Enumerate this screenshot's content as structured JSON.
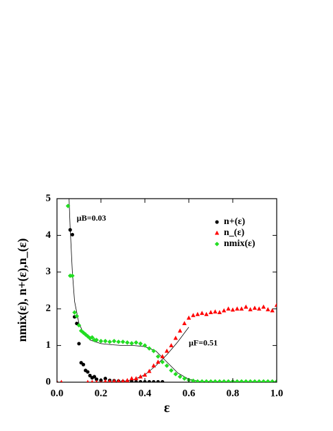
{
  "chart_data": {
    "type": "scatter",
    "xlabel": "ε",
    "ylabel": "nmix(ε), n+(ε),n_(ε)",
    "xlim": [
      0,
      1
    ],
    "ylim": [
      0,
      5
    ],
    "xticks": [
      {
        "value": 0,
        "label": "0.0"
      },
      0.2,
      0.4,
      0.6,
      0.8,
      {
        "value": 1,
        "label": "1.0"
      }
    ],
    "yticks": [
      0,
      1,
      2,
      3,
      4,
      5
    ],
    "legend": "upper right",
    "annotations": [
      {
        "text": "μB=0.03",
        "x": 0.09,
        "y": 4.45
      },
      {
        "text": "μF=0.51",
        "x": 0.6,
        "y": 1.05
      }
    ],
    "series": [
      {
        "name": "n+(ε)",
        "color": "#000000",
        "marker": "circle",
        "x": [
          0.06,
          0.07,
          0.08,
          0.09,
          0.1,
          0.11,
          0.12,
          0.13,
          0.14,
          0.15,
          0.16,
          0.17,
          0.18,
          0.2,
          0.22,
          0.24,
          0.26,
          0.28,
          0.3,
          0.32,
          0.34,
          0.36,
          0.38,
          0.4,
          0.42,
          0.44,
          0.46,
          0.48
        ],
        "values": [
          4.15,
          4.02,
          1.78,
          1.6,
          1.05,
          0.53,
          0.48,
          0.32,
          0.28,
          0.18,
          0.12,
          0.15,
          0.08,
          0.05,
          0.1,
          0.05,
          0.04,
          0.03,
          0.02,
          0.02,
          0.02,
          0.01,
          0.01,
          0.01,
          0.01,
          0.01,
          0.01,
          0.01
        ]
      },
      {
        "name": "n_(ε)",
        "color": "#ff0000",
        "marker": "triangle",
        "x": [
          0.0,
          0.02,
          0.14,
          0.16,
          0.18,
          0.2,
          0.22,
          0.24,
          0.26,
          0.28,
          0.3,
          0.32,
          0.34,
          0.36,
          0.38,
          0.4,
          0.42,
          0.44,
          0.46,
          0.48,
          0.5,
          0.52,
          0.54,
          0.56,
          0.58,
          0.6,
          0.62,
          0.64,
          0.66,
          0.68,
          0.7,
          0.72,
          0.74,
          0.76,
          0.78,
          0.8,
          0.82,
          0.84,
          0.86,
          0.88,
          0.9,
          0.92,
          0.94,
          0.96,
          0.98,
          1.0
        ],
        "values": [
          0,
          0,
          0,
          0,
          0,
          0,
          0.02,
          0.02,
          0.03,
          0.03,
          0.03,
          0.05,
          0.1,
          0.1,
          0.15,
          0.2,
          0.3,
          0.45,
          0.55,
          0.7,
          0.85,
          1.0,
          1.2,
          1.4,
          1.6,
          1.75,
          1.82,
          1.85,
          1.88,
          1.85,
          1.9,
          1.92,
          1.9,
          1.95,
          2.0,
          1.97,
          2.0,
          2.0,
          2.05,
          1.98,
          2.02,
          2.0,
          2.05,
          1.98,
          1.95,
          2.1
        ]
      },
      {
        "name": "nmix(ε)",
        "color": "#22dd22",
        "marker": "diamond",
        "x": [
          0.05,
          0.06,
          0.07,
          0.08,
          0.09,
          0.1,
          0.11,
          0.12,
          0.13,
          0.14,
          0.15,
          0.16,
          0.17,
          0.18,
          0.2,
          0.22,
          0.24,
          0.26,
          0.28,
          0.3,
          0.32,
          0.34,
          0.36,
          0.38,
          0.4,
          0.42,
          0.44,
          0.46,
          0.48,
          0.5,
          0.52,
          0.54,
          0.56,
          0.58,
          0.6,
          0.62,
          0.64,
          0.66,
          0.68,
          0.7,
          0.72,
          0.74,
          0.76,
          0.78,
          0.8,
          0.82,
          0.84,
          0.86,
          0.88,
          0.9,
          0.92,
          0.94,
          0.96,
          0.98,
          1.0
        ],
        "values": [
          4.8,
          2.9,
          2.9,
          1.9,
          1.8,
          1.55,
          1.4,
          1.35,
          1.3,
          1.25,
          1.2,
          1.22,
          1.15,
          1.15,
          1.12,
          1.12,
          1.1,
          1.12,
          1.1,
          1.1,
          1.08,
          1.06,
          1.08,
          1.05,
          1.0,
          0.92,
          0.85,
          0.7,
          0.55,
          0.45,
          0.32,
          0.22,
          0.15,
          0.1,
          0.06,
          0.04,
          0.02,
          0.02,
          0.02,
          0.02,
          0.02,
          0.02,
          0.02,
          0.02,
          0.02,
          0.02,
          0.02,
          0.02,
          0.02,
          0.02,
          0.02,
          0.02,
          0.02,
          0.02,
          0.02
        ]
      }
    ],
    "fit_lines": [
      {
        "color": "#000000",
        "x": [
          0.055,
          0.06,
          0.07,
          0.08,
          0.1,
          0.12,
          0.15,
          0.2,
          0.25,
          0.3,
          0.35,
          0.4,
          0.45,
          0.5,
          0.55,
          0.6,
          0.65,
          0.7,
          0.8,
          1.0
        ],
        "values": [
          5,
          4.2,
          3.0,
          2.2,
          1.6,
          1.35,
          1.15,
          1.05,
          1.02,
          1.0,
          1.0,
          0.97,
          0.85,
          0.55,
          0.25,
          0.08,
          0.02,
          0.01,
          0,
          0
        ]
      },
      {
        "color": "#000000",
        "x": [
          0.2,
          0.3,
          0.35,
          0.4,
          0.45,
          0.5,
          0.55,
          0.6
        ],
        "values": [
          0,
          0.02,
          0.07,
          0.2,
          0.45,
          0.75,
          1.1,
          1.5
        ]
      }
    ]
  }
}
